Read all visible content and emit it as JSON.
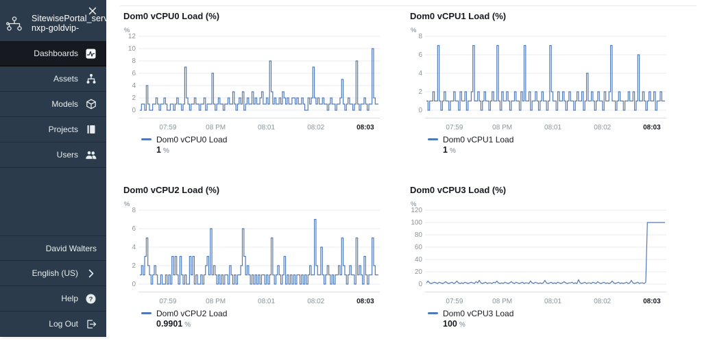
{
  "sidebar": {
    "portal_title_line1": "SitewisePortal_server",
    "portal_title_line2": "nxp-goldvip-",
    "nav": [
      {
        "label": "Dashboards",
        "icon": "dashboards-icon",
        "active": true
      },
      {
        "label": "Assets",
        "icon": "assets-icon",
        "active": false
      },
      {
        "label": "Models",
        "icon": "models-icon",
        "active": false
      },
      {
        "label": "Projects",
        "icon": "projects-icon",
        "active": false
      },
      {
        "label": "Users",
        "icon": "users-icon",
        "active": false
      }
    ],
    "user_name": "David Walters",
    "language_label": "English (US)",
    "help_label": "Help",
    "logout_label": "Log Out"
  },
  "colors": {
    "sidebar_bg": "#2b3b4c",
    "sidebar_active_bg": "#16191f",
    "line_blue": "#4d79ba",
    "gridline": "#e9ebed"
  },
  "chart_data": [
    {
      "type": "line",
      "title": "Dom0 vCPU0 Load (%)",
      "ylabel": "%",
      "ymax": 12,
      "y_ticks": [
        12,
        10,
        8,
        6,
        4,
        2,
        0
      ],
      "x_ticks": [
        "07:59",
        "08 PM",
        "08:01",
        "08:02",
        "08:03"
      ],
      "step": true,
      "series": [
        {
          "name": "Dom0 vCPU0 Load",
          "latest_value": "1",
          "value_unit": "%"
        }
      ],
      "values": [
        0,
        1,
        1,
        0,
        4,
        1,
        0,
        0,
        1,
        1,
        2,
        1,
        0,
        1,
        1,
        2,
        1,
        0,
        0,
        1,
        1,
        0,
        1,
        2,
        1,
        1,
        0,
        1,
        7,
        2,
        1,
        0,
        1,
        1,
        2,
        1,
        1,
        0,
        1,
        1,
        2,
        0,
        1,
        1,
        1,
        6,
        1,
        0,
        1,
        2,
        1,
        1,
        0,
        1,
        1,
        2,
        1,
        1,
        3,
        1,
        0,
        1,
        2,
        1,
        3,
        0,
        1,
        2,
        1,
        1,
        3,
        1,
        2,
        1,
        1,
        2,
        3,
        1,
        1,
        2,
        1,
        8,
        3,
        1,
        2,
        1,
        1,
        2,
        1,
        3,
        2,
        1,
        2,
        1,
        1,
        2,
        2,
        1,
        2,
        1,
        1,
        2,
        1,
        0,
        0,
        2,
        1,
        2,
        7,
        2,
        1,
        2,
        1,
        1,
        2,
        1,
        1,
        0,
        1,
        2,
        1,
        1,
        0,
        1,
        1,
        2,
        5,
        1,
        0,
        1,
        2,
        1,
        1,
        0,
        1,
        8,
        1,
        0,
        1,
        1,
        2,
        1,
        0,
        1,
        1,
        10,
        2,
        1,
        1,
        1
      ]
    },
    {
      "type": "line",
      "title": "Dom0 vCPU1 Load (%)",
      "ylabel": "%",
      "ymax": 8,
      "y_ticks": [
        8,
        6,
        4,
        2,
        0
      ],
      "x_ticks": [
        "07:59",
        "08 PM",
        "08:01",
        "08:02",
        "08:03"
      ],
      "step": true,
      "series": [
        {
          "name": "Dom0 vCPU1 Load",
          "latest_value": "1",
          "value_unit": "%"
        }
      ],
      "values": [
        1,
        0,
        1,
        1,
        2,
        1,
        1,
        7,
        1,
        0,
        1,
        2,
        1,
        1,
        0,
        1,
        1,
        2,
        1,
        1,
        0,
        2,
        1,
        1,
        2,
        0,
        1,
        1,
        2,
        7,
        1,
        1,
        2,
        1,
        0,
        1,
        2,
        1,
        1,
        0,
        1,
        2,
        1,
        1,
        7,
        1,
        0,
        2,
        1,
        1,
        2,
        1,
        0,
        1,
        1,
        2,
        1,
        1,
        0,
        2,
        1,
        7,
        1,
        1,
        2,
        0,
        1,
        1,
        2,
        1,
        0,
        1,
        2,
        1,
        1,
        0,
        1,
        7,
        2,
        1,
        1,
        0,
        2,
        1,
        1,
        2,
        1,
        0,
        1,
        2,
        1,
        1,
        0,
        1,
        2,
        1,
        1,
        2,
        0,
        1,
        4,
        1,
        1,
        2,
        1,
        0,
        1,
        2,
        1,
        1,
        0,
        2,
        1,
        1,
        2,
        7,
        1,
        1,
        0,
        1,
        2,
        1,
        1,
        0,
        1,
        1,
        2,
        1,
        1,
        2,
        0,
        1,
        6,
        1,
        1,
        2,
        1,
        0,
        1,
        2,
        1,
        1,
        2,
        0,
        1,
        1,
        2,
        1,
        1,
        1
      ]
    },
    {
      "type": "line",
      "title": "Dom0 vCPU2 Load (%)",
      "ylabel": "%",
      "ymax": 8,
      "y_ticks": [
        8,
        6,
        4,
        2,
        0
      ],
      "x_ticks": [
        "07:59",
        "08 PM",
        "08:01",
        "08:02",
        "08:03"
      ],
      "step": true,
      "series": [
        {
          "name": "Dom0 vCPU2 Load",
          "latest_value": "0.9901",
          "value_unit": "%"
        }
      ],
      "values": [
        1,
        2,
        1,
        3,
        5,
        2,
        1,
        0,
        1,
        2,
        1,
        0,
        0,
        1,
        0,
        0,
        1,
        0,
        1,
        0,
        3,
        1,
        3,
        1,
        0,
        3,
        1,
        0,
        1,
        0,
        0,
        3,
        1,
        3,
        0,
        1,
        0,
        0,
        1,
        0,
        1,
        2,
        3,
        1,
        6,
        1,
        2,
        1,
        0,
        1,
        0,
        1,
        0,
        1,
        1,
        0,
        2,
        1,
        0,
        1,
        0,
        1,
        1,
        2,
        6,
        3,
        1,
        2,
        1,
        0,
        1,
        0,
        1,
        0,
        1,
        0,
        1,
        1,
        0,
        1,
        0,
        1,
        5,
        1,
        0,
        1,
        2,
        1,
        0,
        1,
        3,
        0,
        1,
        0,
        1,
        0,
        1,
        0,
        1,
        1,
        0,
        1,
        0,
        1,
        0,
        1,
        2,
        1,
        1,
        7,
        2,
        1,
        1,
        4,
        1,
        0,
        1,
        2,
        1,
        0,
        1,
        0,
        1,
        1,
        2,
        1,
        5,
        2,
        1,
        0,
        1,
        2,
        1,
        1,
        0,
        5,
        1,
        2,
        1,
        0,
        3,
        1,
        0,
        1,
        1,
        5,
        2,
        1,
        1,
        1
      ]
    },
    {
      "type": "line",
      "title": "Dom0 vCPU3 Load (%)",
      "ylabel": "%",
      "ymax": 120,
      "y_ticks": [
        120,
        100,
        80,
        60,
        40,
        20,
        0
      ],
      "x_ticks": [
        "07:59",
        "08 PM",
        "08:01",
        "08:02",
        "08:03"
      ],
      "step": false,
      "series": [
        {
          "name": "Dom0 vCPU3 Load",
          "latest_value": "100",
          "value_unit": "%"
        }
      ],
      "values": [
        2,
        5,
        2,
        1,
        2,
        3,
        2,
        1,
        3,
        2,
        1,
        2,
        4,
        2,
        1,
        2,
        3,
        1,
        2,
        5,
        2,
        1,
        2,
        1,
        3,
        2,
        1,
        2,
        3,
        2,
        1,
        4,
        2,
        6,
        2,
        1,
        2,
        3,
        1,
        2,
        2,
        1,
        3,
        2,
        5,
        2,
        1,
        2,
        1,
        3,
        2,
        1,
        2,
        4,
        2,
        1,
        3,
        2,
        1,
        2,
        3,
        1,
        2,
        2,
        1,
        5,
        2,
        1,
        3,
        2,
        1,
        2,
        1,
        2,
        6,
        2,
        1,
        2,
        3,
        1,
        2,
        1,
        3,
        2,
        1,
        2,
        4,
        2,
        1,
        2,
        2,
        3,
        1,
        2,
        1,
        7,
        2,
        1,
        2,
        3,
        1,
        2,
        2,
        1,
        3,
        2,
        1,
        4,
        2,
        1,
        2,
        3,
        1,
        2,
        1,
        2,
        5,
        2,
        1,
        2,
        3,
        1,
        2,
        1,
        2,
        3,
        1,
        2,
        6,
        2,
        1,
        2,
        3,
        1,
        2,
        2,
        1,
        3,
        100,
        100,
        100,
        100,
        100,
        100,
        100,
        100,
        100,
        100,
        100,
        100
      ]
    }
  ]
}
